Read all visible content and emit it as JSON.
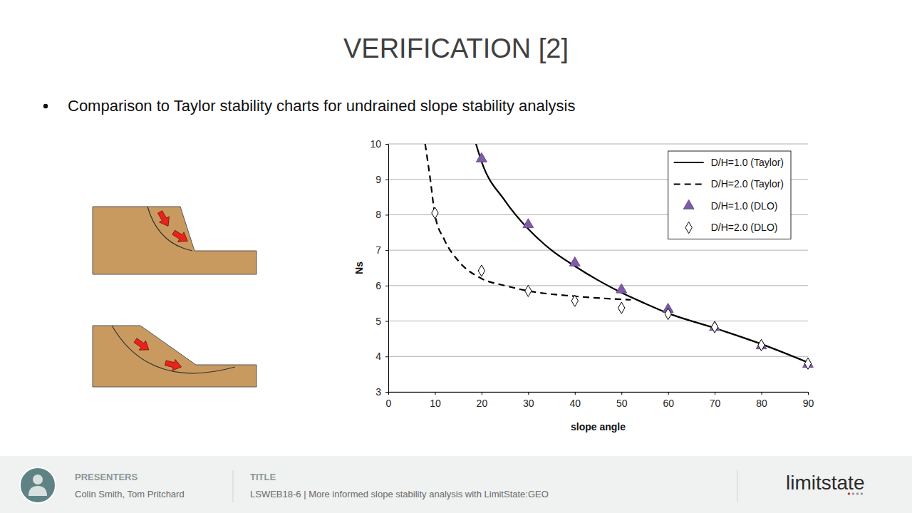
{
  "slide": {
    "title": "VERIFICATION [2]",
    "bullet": "Comparison to Taylor stability charts for undrained slope stability analysis",
    "footer": {
      "presenters_heading": "PRESENTERS",
      "presenters": "Colin Smith, Tom Pritchard",
      "title_heading": "TITLE",
      "title": "LSWEB18-6 | More informed slope stability analysis with LimitState:GEO",
      "logo": "limitstate"
    }
  },
  "chart_data": {
    "type": "line",
    "xlabel": "slope angle",
    "ylabel": "Ns",
    "xlim": [
      0,
      90
    ],
    "xticks": [
      0,
      10,
      20,
      30,
      40,
      50,
      60,
      70,
      80,
      90
    ],
    "ylim": [
      3,
      10
    ],
    "yticks": [
      3,
      4,
      5,
      6,
      7,
      8,
      9,
      10
    ],
    "grid": true,
    "legend": "top-right",
    "series": [
      {
        "name": "D/H=1.0 (Taylor)",
        "type": "line",
        "line_style": "solid",
        "color": "#000000",
        "x": [
          18.8,
          20,
          25,
          30,
          35,
          40,
          45,
          50,
          55,
          60,
          70,
          80,
          90
        ],
        "values": [
          10,
          9.5,
          8.4,
          7.6,
          7.0,
          6.55,
          6.15,
          5.8,
          5.5,
          5.22,
          4.8,
          4.35,
          3.83
        ]
      },
      {
        "name": "D/H=2.0 (Taylor)",
        "type": "line",
        "line_style": "dashed",
        "color": "#000000",
        "x": [
          7.9,
          9,
          10,
          12,
          15,
          20,
          25,
          30,
          40,
          52
        ],
        "values": [
          10,
          9.0,
          8.0,
          7.3,
          6.7,
          6.2,
          6.0,
          5.85,
          5.7,
          5.6
        ]
      },
      {
        "name": "D/H=1.0 (DLO)",
        "type": "scatter",
        "marker": "triangle",
        "color": "#7e5ca8",
        "x": [
          20,
          30,
          40,
          50,
          60,
          70,
          80,
          90
        ],
        "values": [
          9.58,
          7.72,
          6.64,
          5.88,
          5.33,
          4.82,
          4.3,
          3.78
        ]
      },
      {
        "name": "D/H=2.0 (DLO)",
        "type": "scatter",
        "marker": "diamond-open",
        "color": "#000000",
        "x": [
          10,
          20,
          30,
          40,
          50,
          60,
          70,
          80,
          90
        ],
        "values": [
          8.05,
          6.42,
          5.85,
          5.57,
          5.37,
          5.2,
          4.83,
          4.32,
          3.8
        ]
      }
    ]
  }
}
